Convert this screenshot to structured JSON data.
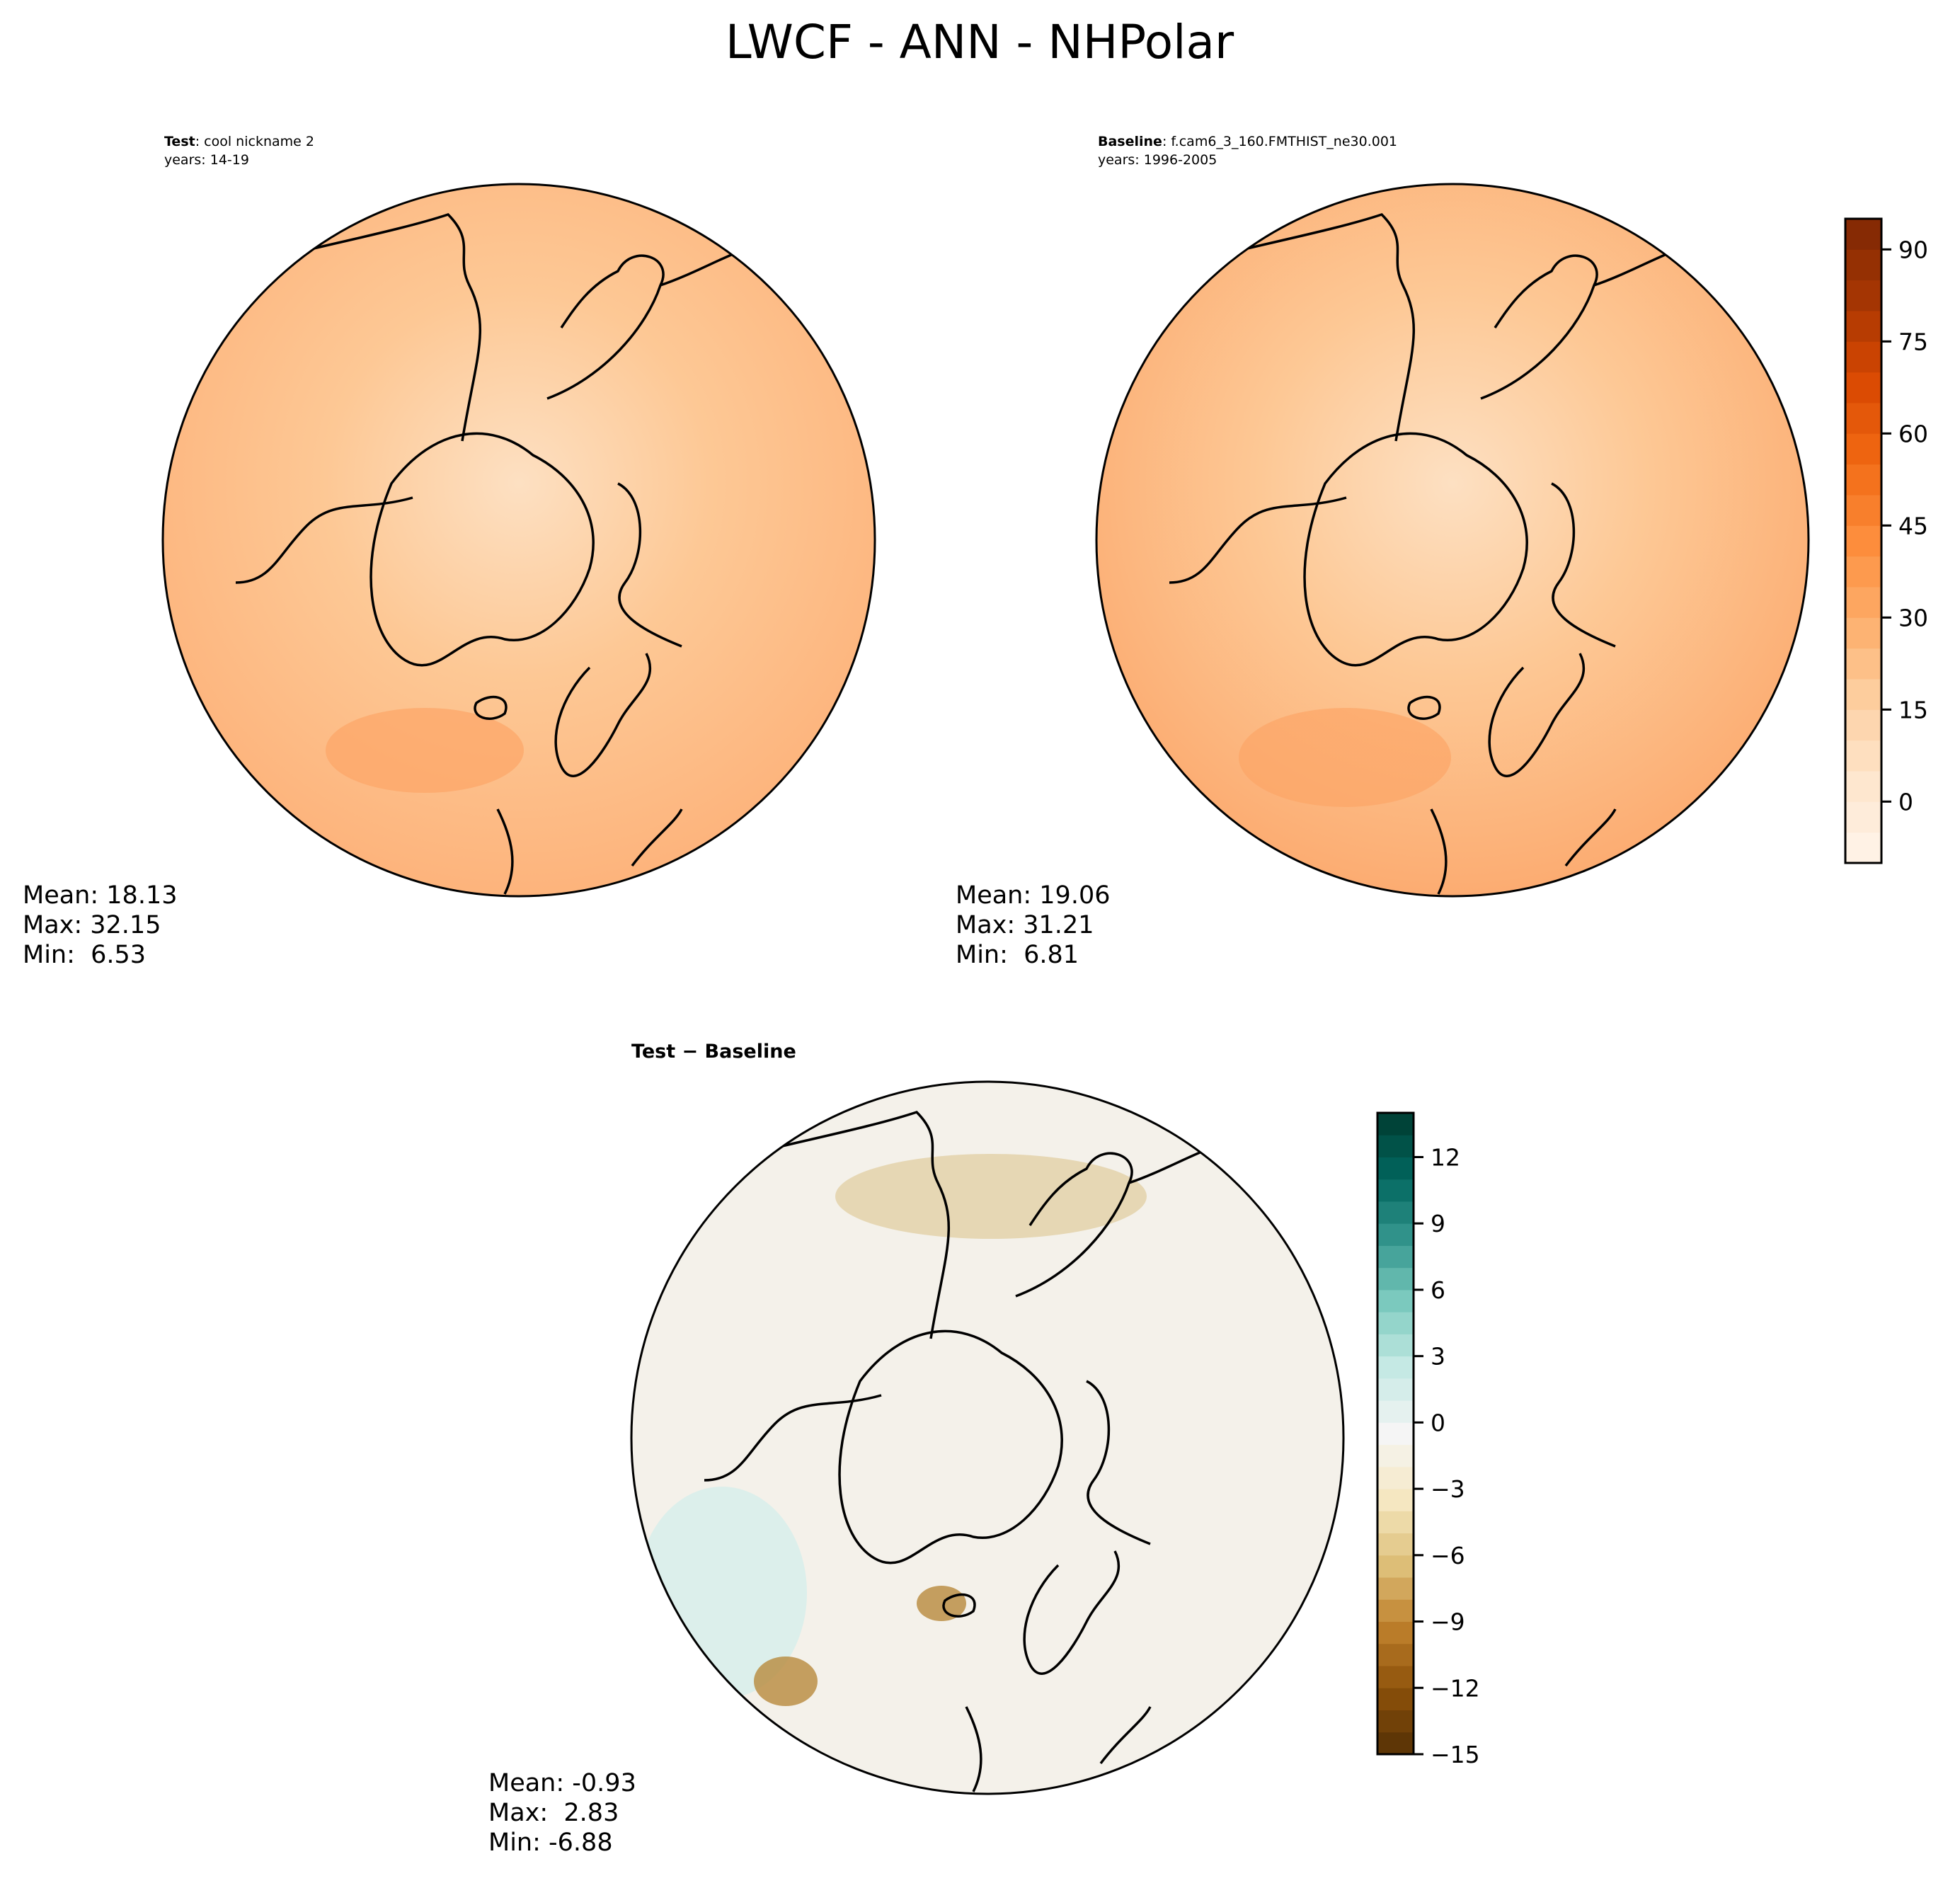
{
  "chart_data": {
    "type": "heatmap",
    "title": "LWCF - ANN - NHPolar",
    "panels": [
      {
        "id": "test",
        "label_bold": "Test",
        "label_rest": ": cool nickname 2",
        "years": "years: 14-19",
        "stats": [
          "Mean: 18.13",
          "Max: 32.15",
          "Min:  6.53"
        ],
        "projection": "north polar stereographic",
        "colormap": "Oranges",
        "colors": {
          "pole": "#fde0c2",
          "mid": "#fdc895",
          "edge": "#fdb27a",
          "hot": "#fca567"
        }
      },
      {
        "id": "baseline",
        "label_bold": "Baseline",
        "label_rest": ": f.cam6_3_160.FMTHIST_ne30.001",
        "years": "years: 1996-2005",
        "stats": [
          "Mean: 19.06",
          "Max: 31.21",
          "Min:  6.81"
        ],
        "projection": "north polar stereographic",
        "colormap": "Oranges",
        "colors": {
          "pole": "#fde0c2",
          "mid": "#fdc895",
          "edge": "#fcaa6f",
          "hot": "#fca567"
        }
      },
      {
        "id": "diff",
        "label": "Test − Baseline",
        "stats": [
          "Mean: -0.93",
          "Max:  2.83",
          "Min: -6.88"
        ],
        "projection": "north polar stereographic",
        "colormap": "BrBG",
        "colors": {
          "base": "#f4f1ea",
          "teal": "#dcefeb",
          "brown": "#dcc690",
          "deep": "#b88a3c"
        }
      }
    ],
    "colorbars": [
      {
        "range": [
          -10,
          95
        ],
        "step": 5,
        "ticks": [
          "0",
          "15",
          "30",
          "45",
          "60",
          "75",
          "90"
        ],
        "tick_values": [
          0,
          15,
          30,
          45,
          60,
          75,
          90
        ],
        "stops": [
          "#fff5eb",
          "#fee6ce",
          "#fdd0a2",
          "#fdae6b",
          "#fd8d3c",
          "#f16913",
          "#d94801",
          "#a63603",
          "#7f2704"
        ]
      },
      {
        "range": [
          -15,
          14
        ],
        "step": 1,
        "ticks": [
          "−15",
          "−12",
          "−9",
          "−6",
          "−3",
          "0",
          "3",
          "6",
          "9",
          "12"
        ],
        "tick_values": [
          -15,
          -12,
          -9,
          -6,
          -3,
          0,
          3,
          6,
          9,
          12
        ],
        "stops": [
          "#543005",
          "#8c510a",
          "#bf812d",
          "#dfc27d",
          "#f6e8c3",
          "#f5f5f5",
          "#c7eae5",
          "#80cdc1",
          "#35978f",
          "#01665e",
          "#003c30"
        ]
      }
    ]
  }
}
